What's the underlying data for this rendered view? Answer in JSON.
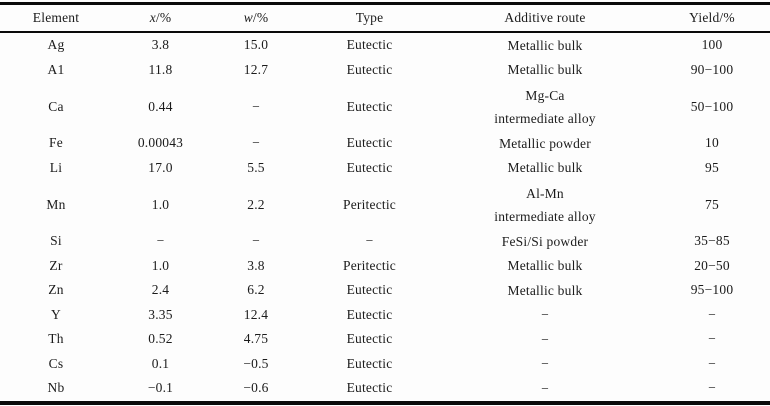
{
  "page": {
    "background": "#fdfdfd",
    "rule_color": "#0a0a0a",
    "text_color": "#1b1b1b"
  },
  "table": {
    "header": {
      "element": "Element",
      "x_var": "x",
      "x_unit": "/%",
      "w_var": "w",
      "w_unit": "/%",
      "type": "Type",
      "route": "Additive route",
      "yield_label": "Yield/%"
    },
    "rows": [
      {
        "element": "Ag",
        "x": "3.8",
        "w": "15.0",
        "type": "Eutectic",
        "route": [
          "Metallic bulk"
        ],
        "yield": "100",
        "tall": false
      },
      {
        "element": "A1",
        "x": "11.8",
        "w": "12.7",
        "type": "Eutectic",
        "route": [
          "Metallic bulk"
        ],
        "yield": "90−100",
        "tall": false
      },
      {
        "element": "Ca",
        "x": "0.44",
        "w": "−",
        "type": "Eutectic",
        "route": [
          "Mg-Ca",
          "intermediate alloy"
        ],
        "yield": "50−100",
        "tall": true
      },
      {
        "element": "Fe",
        "x": "0.00043",
        "w": "−",
        "type": "Eutectic",
        "route": [
          "Metallic powder"
        ],
        "yield": "10",
        "tall": false
      },
      {
        "element": "Li",
        "x": "17.0",
        "w": "5.5",
        "type": "Eutectic",
        "route": [
          "Metallic bulk"
        ],
        "yield": "95",
        "tall": false
      },
      {
        "element": "Mn",
        "x": "1.0",
        "w": "2.2",
        "type": "Peritectic",
        "route": [
          "Al-Mn",
          "intermediate alloy"
        ],
        "yield": "75",
        "tall": true
      },
      {
        "element": "Si",
        "x": "−",
        "w": "−",
        "type": "−",
        "route": [
          "FeSi/Si powder"
        ],
        "yield": "35−85",
        "tall": false
      },
      {
        "element": "Zr",
        "x": "1.0",
        "w": "3.8",
        "type": "Peritectic",
        "route": [
          "Metallic bulk"
        ],
        "yield": "20−50",
        "tall": false
      },
      {
        "element": "Zn",
        "x": "2.4",
        "w": "6.2",
        "type": "Eutectic",
        "route": [
          "Metallic bulk"
        ],
        "yield": "95−100",
        "tall": false
      },
      {
        "element": "Y",
        "x": "3.35",
        "w": "12.4",
        "type": "Eutectic",
        "route": [
          "−"
        ],
        "yield": "−",
        "tall": false
      },
      {
        "element": "Th",
        "x": "0.52",
        "w": "4.75",
        "type": "Eutectic",
        "route": [
          "−"
        ],
        "yield": "−",
        "tall": false
      },
      {
        "element": "Cs",
        "x": "0.1",
        "w": "−0.5",
        "type": "Eutectic",
        "route": [
          "−"
        ],
        "yield": "−",
        "tall": false
      },
      {
        "element": "Nb",
        "x": "−0.1",
        "w": "−0.6",
        "type": "Eutectic",
        "route": [
          "−"
        ],
        "yield": "−",
        "tall": false
      }
    ]
  }
}
